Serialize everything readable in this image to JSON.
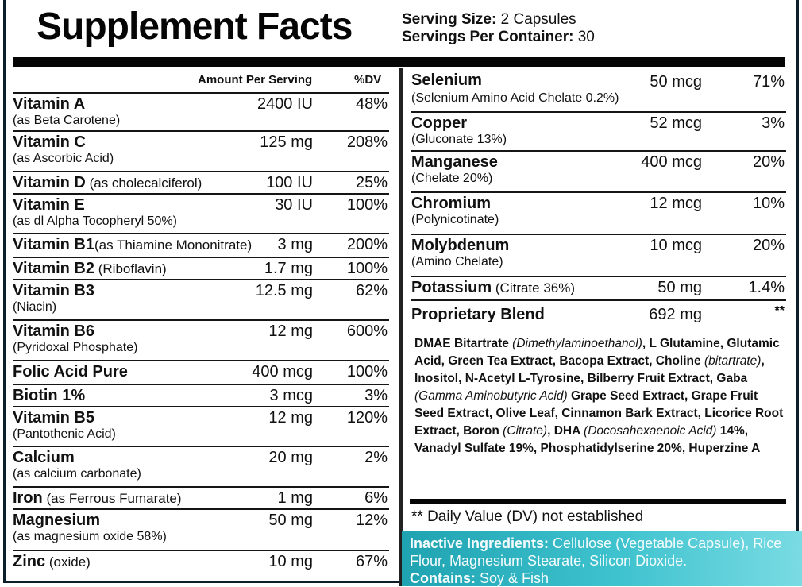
{
  "title": "Supplement Facts",
  "serving": {
    "size_label": "Serving Size:",
    "size_value": "2 Capsules",
    "per_container_label": "Servings Per Container:",
    "per_container_value": "30"
  },
  "headers": {
    "amount": "Amount Per Serving",
    "dv": "%DV"
  },
  "left_items": [
    {
      "name": "Vitamin A",
      "inline": "",
      "sub": "(as Beta Carotene)",
      "amount": "2400 IU",
      "dv": "48%"
    },
    {
      "name": "Vitamin C",
      "inline": "",
      "sub": "(as Ascorbic Acid)",
      "amount": "125 mg",
      "dv": "208%"
    },
    {
      "name": "Vitamin D",
      "inline": " (as cholecalciferol)",
      "sub": "",
      "amount": "100 IU",
      "dv": "25%"
    },
    {
      "name": "Vitamin E",
      "inline": "",
      "sub": "(as dl Alpha Tocopheryl 50%)",
      "amount": "30 IU",
      "dv": "100%"
    },
    {
      "name": "Vitamin B1",
      "inline": "(as Thiamine Mononitrate)",
      "sub": "",
      "amount": "3 mg",
      "dv": "200%"
    },
    {
      "name": "Vitamin B2",
      "inline": " (Riboflavin)",
      "sub": "",
      "amount": "1.7 mg",
      "dv": "100%"
    },
    {
      "name": "Vitamin B3",
      "inline": "",
      "sub": "(Niacin)",
      "amount": "12.5 mg",
      "dv": "62%"
    },
    {
      "name": "Vitamin B6",
      "inline": "",
      "sub": "(Pyridoxal Phosphate)",
      "amount": "12 mg",
      "dv": "600%"
    },
    {
      "name": "Folic Acid Pure",
      "inline": "",
      "sub": "",
      "amount": "400 mcg",
      "dv": "100%"
    },
    {
      "name": "Biotin 1%",
      "inline": "",
      "sub": "",
      "amount": "3 mcg",
      "dv": "3%"
    },
    {
      "name": "Vitamin B5",
      "inline": "",
      "sub": "(Pantothenic Acid)",
      "amount": "12 mg",
      "dv": "120%"
    },
    {
      "name": "Calcium",
      "inline": "",
      "sub": "(as calcium carbonate)",
      "amount": "20 mg",
      "dv": "2%"
    },
    {
      "name": "Iron",
      "inline": " (as Ferrous Fumarate)",
      "sub": "",
      "amount": "1 mg",
      "dv": "6%"
    },
    {
      "name": "Magnesium",
      "inline": "",
      "sub": "(as magnesium oxide 58%)",
      "amount": "50 mg",
      "dv": "12%"
    },
    {
      "name": "Zinc",
      "inline": " (oxide)",
      "sub": "",
      "amount": "10 mg",
      "dv": "67%"
    }
  ],
  "right_items": [
    {
      "name": "Selenium",
      "inline": "",
      "sub": "(Selenium Amino Acid Chelate 0.2%)",
      "amount": "50 mcg",
      "dv": "71%"
    },
    {
      "name": "Copper",
      "inline": "",
      "sub": "(Gluconate 13%)",
      "amount": "52 mcg",
      "dv": "3%"
    },
    {
      "name": "Manganese",
      "inline": "",
      "sub": "(Chelate 20%)",
      "amount": "400 mcg",
      "dv": "20%"
    },
    {
      "name": "Chromium",
      "inline": "",
      "sub": "(Polynicotinate)",
      "amount": "12 mcg",
      "dv": "10%"
    },
    {
      "name": "Molybdenum",
      "inline": "",
      "sub": "(Amino Chelate)",
      "amount": "10 mcg",
      "dv": "20%"
    },
    {
      "name": "Potassium",
      "inline": " (Citrate 36%)",
      "sub": "",
      "amount": "50 mg",
      "dv": "1.4%"
    },
    {
      "name": "Proprietary Blend",
      "inline": "",
      "sub": "",
      "amount": "692 mg",
      "dv": "**"
    }
  ],
  "blend_ingredients": [
    {
      "text": "DMAE Bitartrate ",
      "italic": false
    },
    {
      "text": "(Dimethylaminoethanol)",
      "italic": true
    },
    {
      "text": ", L Glutamine, Glutamic Acid, Green Tea Extract, Bacopa Extract, Choline ",
      "italic": false
    },
    {
      "text": "(bitartrate)",
      "italic": true
    },
    {
      "text": ", Inositol, N-Acetyl L-Tyrosine, Bilberry Fruit Extract, Gaba ",
      "italic": false
    },
    {
      "text": "(Gamma Aminobutyric Acid)",
      "italic": true
    },
    {
      "text": " Grape Seed Extract, Grape Fruit Seed Extract, Olive Leaf, Cinnamon Bark Extract, Licorice Root Extract, Boron ",
      "italic": false
    },
    {
      "text": "(Citrate)",
      "italic": true
    },
    {
      "text": ", DHA ",
      "italic": false
    },
    {
      "text": "(Docosahexaenoic Acid)",
      "italic": true
    },
    {
      "text": " 14%, Vanadyl Sulfate 19%, Phosphatidylserine 20%, Huperzine A",
      "italic": false
    }
  ],
  "footnote": "** Daily Value (DV) not established",
  "inactive": {
    "label": "Inactive Ingredients:",
    "text": " Cellulose (Vegetable Capsule), Rice Flour, Magnesium Stearate, Silicon Dioxide.",
    "contains_label": "Contains:",
    "contains_text": " Soy & Fish"
  },
  "colors": {
    "accent": "#2fb3c0",
    "ink": "#050505"
  }
}
